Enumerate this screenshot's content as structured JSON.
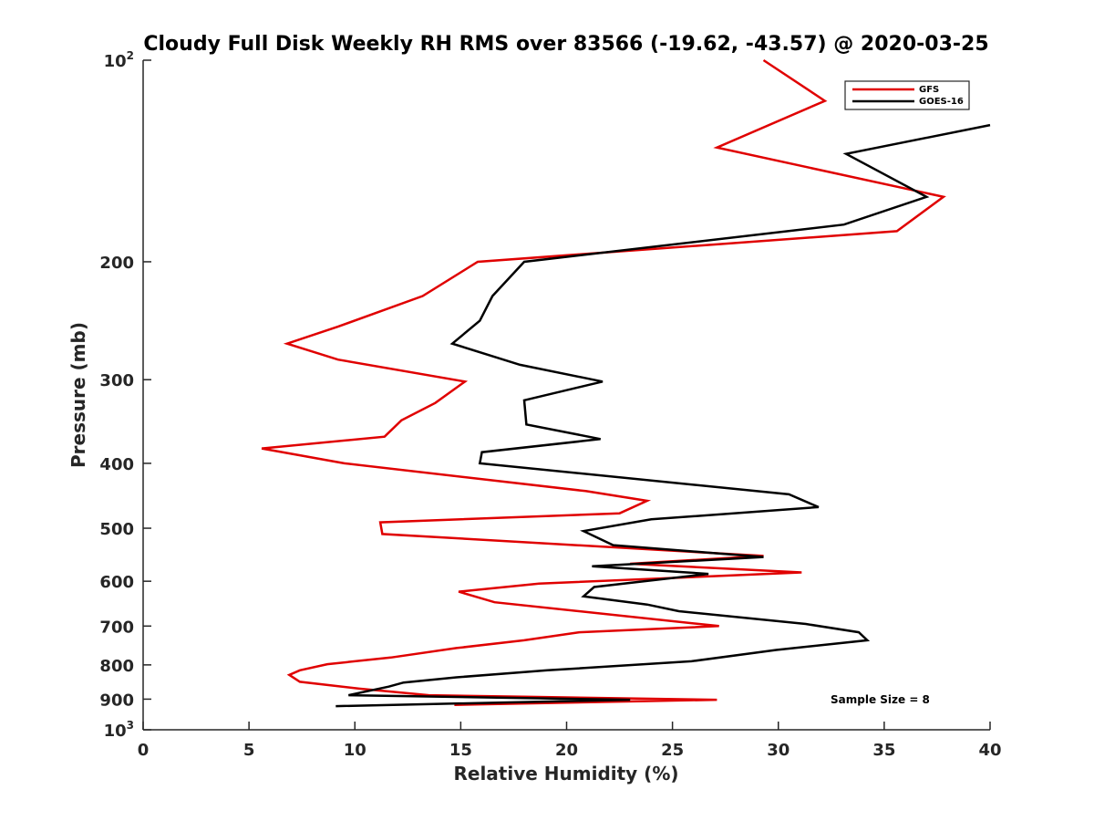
{
  "chart_data": {
    "type": "line",
    "title": "Cloudy Full Disk Weekly RH RMS over 83566 (-19.62, -43.57) @ 2020-03-25",
    "xlabel": "Relative Humidity (%)",
    "ylabel": "Pressure (mb)",
    "xlim": [
      0,
      40
    ],
    "ylim": [
      100,
      1000
    ],
    "y_scale": "log",
    "y_reversed": true,
    "x_ticks": [
      "0",
      "5",
      "10",
      "15",
      "20",
      "25",
      "30",
      "35",
      "40"
    ],
    "y_ticks": [
      {
        "value": 100,
        "label": "10",
        "sup": "2"
      },
      {
        "value": 200,
        "label": "200"
      },
      {
        "value": 300,
        "label": "300"
      },
      {
        "value": 400,
        "label": "400"
      },
      {
        "value": 500,
        "label": "500"
      },
      {
        "value": 600,
        "label": "600"
      },
      {
        "value": 700,
        "label": "700"
      },
      {
        "value": 800,
        "label": "800"
      },
      {
        "value": 900,
        "label": "900"
      },
      {
        "value": 1000,
        "label": "10",
        "sup": "3"
      }
    ],
    "legend_position": "top-right",
    "annotation": "Sample Size = 8",
    "series": [
      {
        "name": "GFS",
        "color": "#e00000",
        "points": [
          [
            29.3,
            100
          ],
          [
            32.2,
            115
          ],
          [
            27.1,
            135
          ],
          [
            37.8,
            160
          ],
          [
            35.6,
            180
          ],
          [
            15.8,
            200
          ],
          [
            13.2,
            225
          ],
          [
            9.2,
            250
          ],
          [
            6.8,
            265
          ],
          [
            9.2,
            280
          ],
          [
            15.2,
            302
          ],
          [
            13.8,
            325
          ],
          [
            12.2,
            345
          ],
          [
            11.4,
            365
          ],
          [
            5.6,
            380
          ],
          [
            9.5,
            400
          ],
          [
            20.9,
            440
          ],
          [
            23.8,
            455
          ],
          [
            22.5,
            475
          ],
          [
            11.2,
            490
          ],
          [
            11.3,
            510
          ],
          [
            29.3,
            550
          ],
          [
            23.0,
            565
          ],
          [
            31.1,
            582
          ],
          [
            18.7,
            605
          ],
          [
            14.9,
            622
          ],
          [
            16.6,
            645
          ],
          [
            27.2,
            700
          ],
          [
            20.6,
            715
          ],
          [
            18.0,
            735
          ],
          [
            14.8,
            755
          ],
          [
            11.7,
            780
          ],
          [
            8.7,
            798
          ],
          [
            7.4,
            815
          ],
          [
            6.9,
            828
          ],
          [
            7.4,
            848
          ],
          [
            10.2,
            868
          ],
          [
            13.5,
            888
          ],
          [
            27.1,
            902
          ],
          [
            14.7,
            918
          ]
        ]
      },
      {
        "name": "GOES-16",
        "color": "#000000",
        "points": [
          [
            40.0,
            125
          ],
          [
            33.2,
            138
          ],
          [
            37.0,
            160
          ],
          [
            33.1,
            176
          ],
          [
            18.0,
            200
          ],
          [
            16.5,
            225
          ],
          [
            15.9,
            245
          ],
          [
            14.6,
            265
          ],
          [
            17.8,
            285
          ],
          [
            21.7,
            302
          ],
          [
            18.0,
            322
          ],
          [
            18.1,
            350
          ],
          [
            21.6,
            368
          ],
          [
            16.0,
            385
          ],
          [
            15.9,
            400
          ],
          [
            30.5,
            445
          ],
          [
            31.9,
            465
          ],
          [
            24.0,
            485
          ],
          [
            20.8,
            505
          ],
          [
            22.2,
            530
          ],
          [
            29.3,
            552
          ],
          [
            21.2,
            570
          ],
          [
            26.7,
            585
          ],
          [
            21.3,
            612
          ],
          [
            20.8,
            632
          ],
          [
            23.8,
            650
          ],
          [
            25.3,
            665
          ],
          [
            31.3,
            695
          ],
          [
            33.8,
            715
          ],
          [
            34.2,
            735
          ],
          [
            29.9,
            760
          ],
          [
            25.9,
            790
          ],
          [
            19.1,
            815
          ],
          [
            14.8,
            835
          ],
          [
            12.3,
            850
          ],
          [
            11.6,
            862
          ],
          [
            9.7,
            888
          ],
          [
            23.0,
            902
          ],
          [
            9.1,
            922
          ]
        ]
      }
    ]
  }
}
